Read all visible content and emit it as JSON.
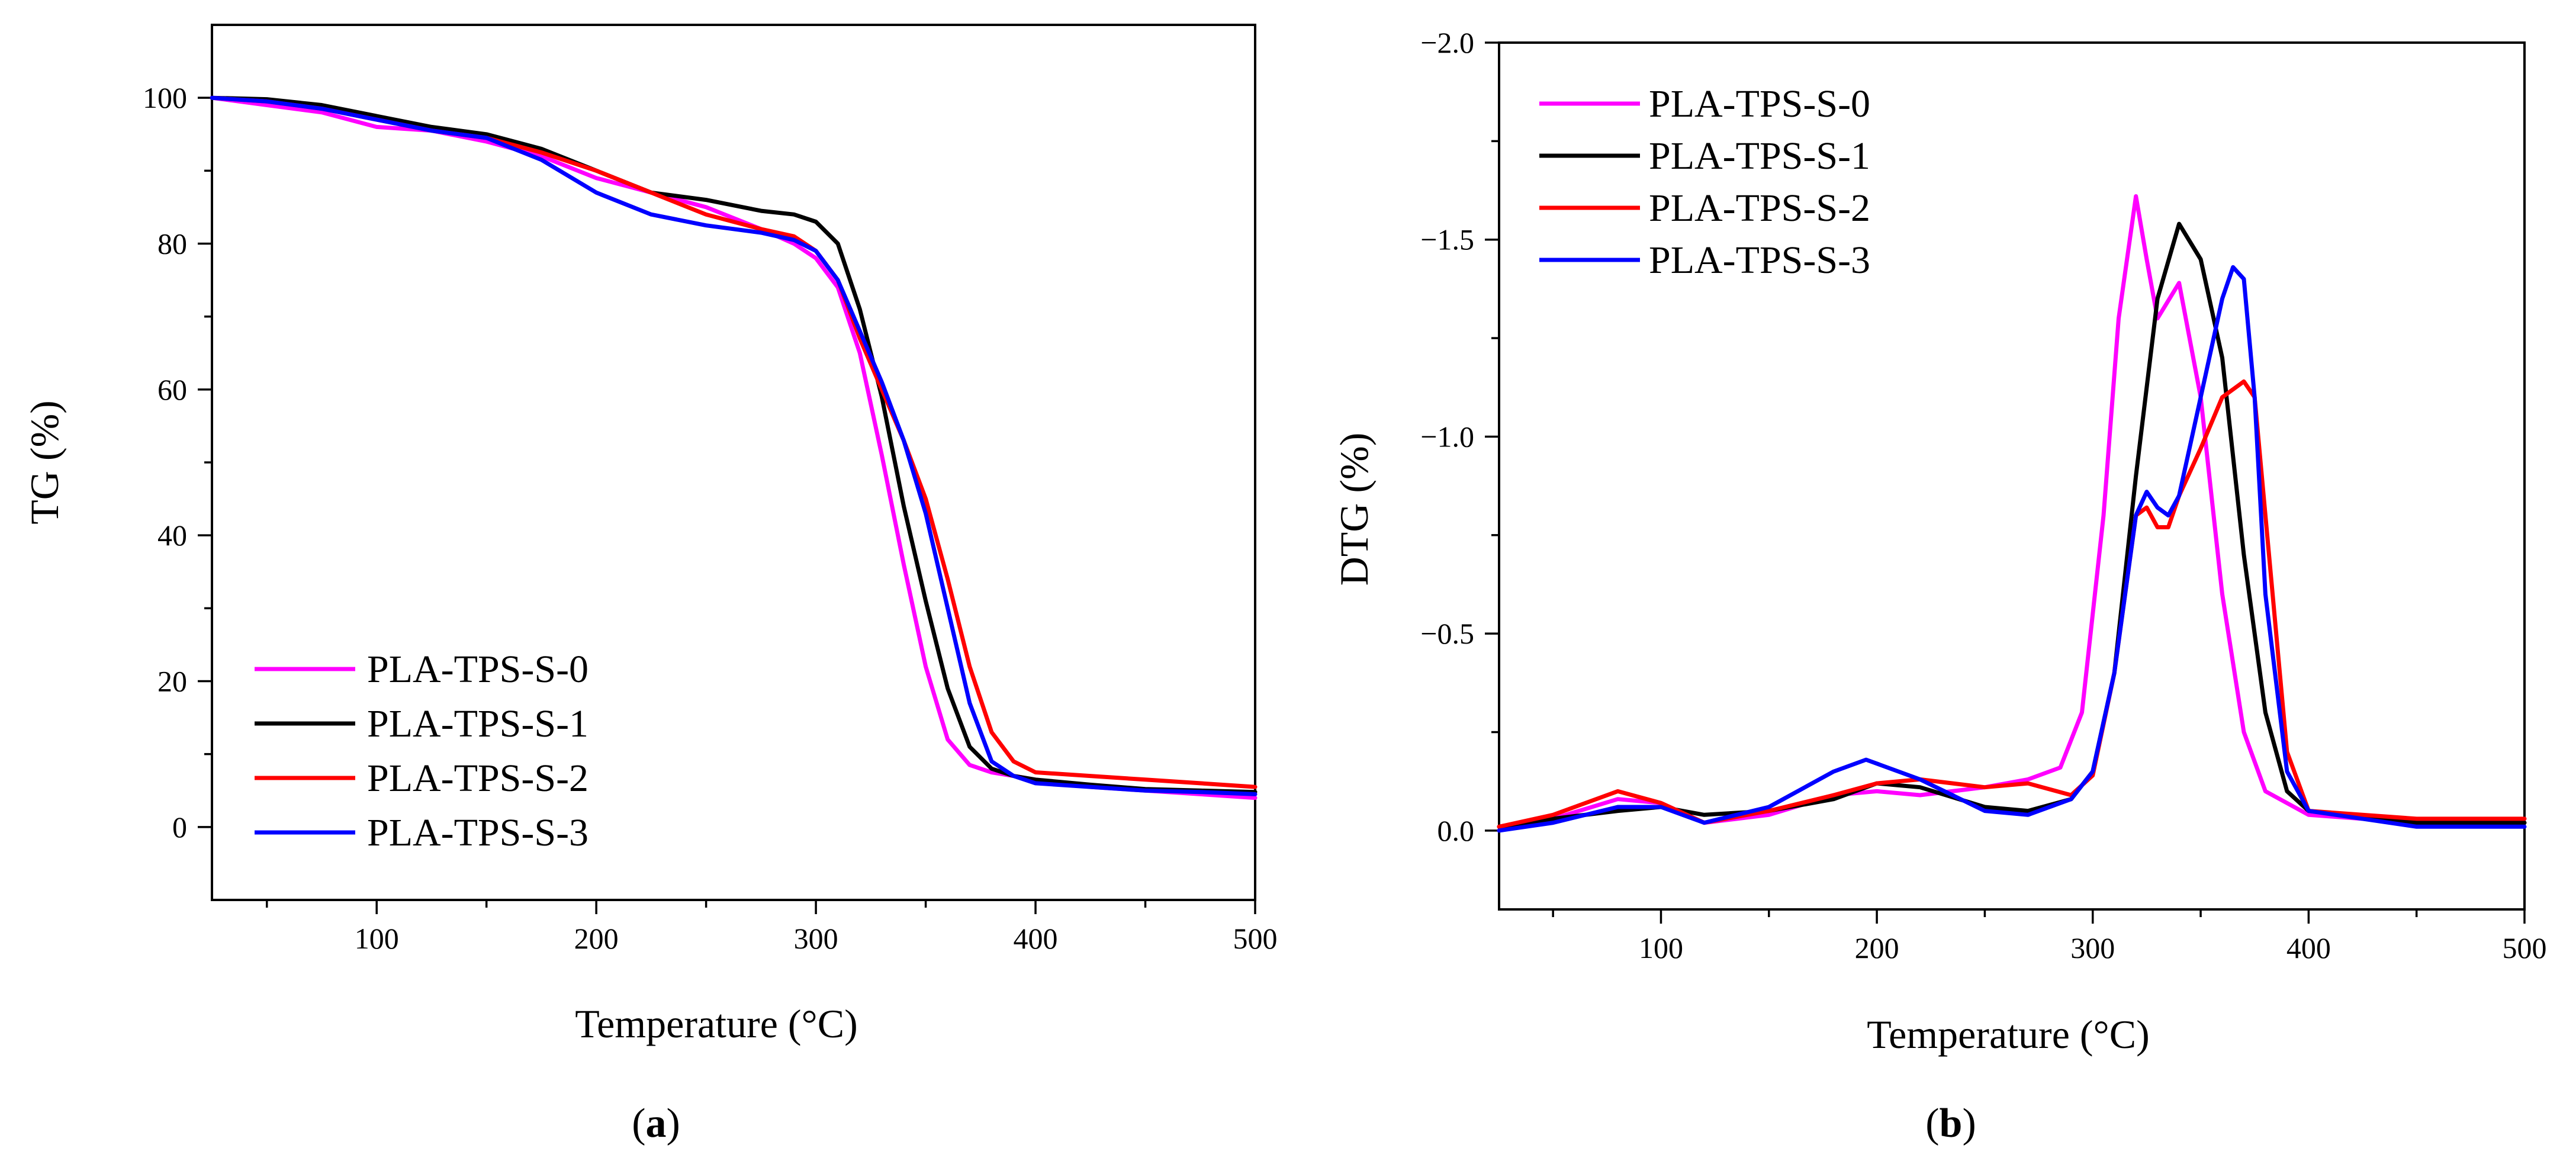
{
  "chart_data": [
    {
      "id": "a",
      "type": "line",
      "caption": "(a)",
      "caption_parts": {
        "open": "(",
        "letter": "a",
        "close": ")"
      },
      "xlabel": "Temperature (°C)",
      "ylabel": "TG (%)",
      "xlim": [
        25,
        500
      ],
      "ylim": [
        -10,
        110
      ],
      "xticks": [
        100,
        200,
        300,
        400,
        500
      ],
      "xminor": [
        50,
        150,
        250,
        350,
        450
      ],
      "yticks": [
        0,
        20,
        40,
        60,
        80,
        100
      ],
      "yminor": [
        10,
        30,
        50,
        70,
        90
      ],
      "legend_position": "bottom-left",
      "series": [
        {
          "name": "PLA-TPS-S-0",
          "color": "#ff00ff",
          "x": [
            25,
            50,
            75,
            100,
            125,
            150,
            175,
            200,
            225,
            250,
            275,
            290,
            300,
            310,
            320,
            330,
            340,
            350,
            360,
            370,
            380,
            390,
            400,
            425,
            450,
            475,
            500
          ],
          "y": [
            100,
            99,
            98,
            96,
            95.5,
            94,
            92,
            89,
            87,
            85,
            82,
            80,
            78,
            74,
            65,
            51,
            36,
            22,
            12,
            8.5,
            7.5,
            7,
            6.5,
            5.5,
            5,
            4.5,
            4
          ]
        },
        {
          "name": "PLA-TPS-S-1",
          "color": "#000000",
          "x": [
            25,
            50,
            75,
            100,
            125,
            150,
            175,
            200,
            225,
            250,
            275,
            290,
            300,
            310,
            320,
            330,
            340,
            350,
            360,
            370,
            380,
            390,
            400,
            425,
            450,
            475,
            500
          ],
          "y": [
            100,
            99.8,
            99,
            97.5,
            96,
            95,
            93,
            90,
            87,
            86,
            84.5,
            84,
            83,
            80,
            71,
            59,
            44,
            31,
            19,
            11,
            8,
            7,
            6.5,
            5.8,
            5.2,
            5,
            4.8
          ]
        },
        {
          "name": "PLA-TPS-S-2",
          "color": "#ff0000",
          "x": [
            25,
            50,
            75,
            100,
            125,
            150,
            175,
            200,
            225,
            250,
            275,
            290,
            300,
            310,
            320,
            330,
            340,
            350,
            360,
            370,
            380,
            390,
            400,
            425,
            450,
            475,
            500
          ],
          "y": [
            100,
            99.5,
            98.5,
            97,
            95.5,
            94.5,
            92.5,
            90,
            87,
            84,
            82,
            81,
            79,
            75,
            67,
            60,
            53,
            45,
            34,
            22,
            13,
            9,
            7.5,
            7,
            6.5,
            6,
            5.5
          ]
        },
        {
          "name": "PLA-TPS-S-3",
          "color": "#0000ff",
          "x": [
            25,
            50,
            75,
            100,
            125,
            150,
            175,
            200,
            225,
            250,
            275,
            290,
            300,
            310,
            320,
            330,
            340,
            350,
            360,
            370,
            380,
            390,
            400,
            425,
            450,
            475,
            500
          ],
          "y": [
            100,
            99.5,
            98.5,
            97,
            95.5,
            94.5,
            91.5,
            87,
            84,
            82.5,
            81.5,
            80.5,
            79,
            75,
            68,
            61,
            53,
            43,
            30,
            17,
            9,
            7,
            6,
            5.5,
            5,
            4.8,
            4.5
          ]
        }
      ]
    },
    {
      "id": "b",
      "type": "line",
      "caption": "(b)",
      "caption_parts": {
        "open": "(",
        "letter": "b",
        "close": ")"
      },
      "xlabel": "Temperature (°C)",
      "ylabel": "DTG (%)",
      "xlim": [
        25,
        500
      ],
      "ylim": [
        0.2,
        -2.0
      ],
      "xticks": [
        100,
        200,
        300,
        400,
        500
      ],
      "xminor": [
        50,
        150,
        250,
        350,
        450
      ],
      "yticks": [
        0.0,
        -0.5,
        -1.0,
        -1.5,
        -2.0
      ],
      "ytick_labels": [
        "0.0",
        "−0.5",
        "−1.0",
        "−1.5",
        "−2.0"
      ],
      "yminor": [
        -0.25,
        -0.75,
        -1.25,
        -1.75
      ],
      "legend_position": "top-left",
      "series": [
        {
          "name": "PLA-TPS-S-0",
          "color": "#ff00ff",
          "x": [
            25,
            50,
            80,
            100,
            120,
            150,
            180,
            200,
            220,
            250,
            270,
            285,
            295,
            305,
            312,
            320,
            325,
            330,
            340,
            350,
            360,
            370,
            380,
            400,
            450,
            500
          ],
          "y": [
            -0.01,
            -0.03,
            -0.08,
            -0.07,
            -0.02,
            -0.04,
            -0.09,
            -0.1,
            -0.09,
            -0.11,
            -0.13,
            -0.16,
            -0.3,
            -0.8,
            -1.3,
            -1.61,
            -1.45,
            -1.3,
            -1.39,
            -1.1,
            -0.6,
            -0.25,
            -0.1,
            -0.04,
            -0.02,
            -0.03
          ]
        },
        {
          "name": "PLA-TPS-S-1",
          "color": "#000000",
          "x": [
            25,
            50,
            80,
            100,
            120,
            150,
            180,
            200,
            220,
            250,
            270,
            290,
            300,
            310,
            320,
            330,
            340,
            350,
            360,
            370,
            380,
            390,
            400,
            450,
            500
          ],
          "y": [
            -0.01,
            -0.03,
            -0.05,
            -0.06,
            -0.04,
            -0.05,
            -0.08,
            -0.12,
            -0.11,
            -0.06,
            -0.05,
            -0.08,
            -0.15,
            -0.4,
            -0.9,
            -1.35,
            -1.54,
            -1.45,
            -1.2,
            -0.7,
            -0.3,
            -0.1,
            -0.05,
            -0.02,
            -0.02
          ]
        },
        {
          "name": "PLA-TPS-S-2",
          "color": "#ff0000",
          "x": [
            25,
            50,
            80,
            100,
            120,
            150,
            180,
            200,
            220,
            250,
            270,
            290,
            300,
            310,
            320,
            325,
            330,
            335,
            340,
            350,
            360,
            370,
            375,
            380,
            390,
            400,
            450,
            500
          ],
          "y": [
            -0.01,
            -0.04,
            -0.1,
            -0.07,
            -0.02,
            -0.05,
            -0.09,
            -0.12,
            -0.13,
            -0.11,
            -0.12,
            -0.09,
            -0.14,
            -0.4,
            -0.8,
            -0.82,
            -0.77,
            -0.77,
            -0.85,
            -0.97,
            -1.1,
            -1.14,
            -1.1,
            -0.8,
            -0.2,
            -0.05,
            -0.03,
            -0.03
          ]
        },
        {
          "name": "PLA-TPS-S-3",
          "color": "#0000ff",
          "x": [
            25,
            50,
            80,
            100,
            120,
            150,
            180,
            195,
            220,
            250,
            270,
            290,
            300,
            310,
            320,
            325,
            330,
            335,
            340,
            350,
            360,
            365,
            370,
            375,
            380,
            390,
            400,
            450,
            500
          ],
          "y": [
            0.0,
            -0.02,
            -0.06,
            -0.06,
            -0.02,
            -0.06,
            -0.15,
            -0.18,
            -0.13,
            -0.05,
            -0.04,
            -0.08,
            -0.15,
            -0.4,
            -0.8,
            -0.86,
            -0.82,
            -0.8,
            -0.85,
            -1.1,
            -1.35,
            -1.43,
            -1.4,
            -1.1,
            -0.6,
            -0.15,
            -0.05,
            -0.01,
            -0.01
          ]
        }
      ]
    }
  ]
}
